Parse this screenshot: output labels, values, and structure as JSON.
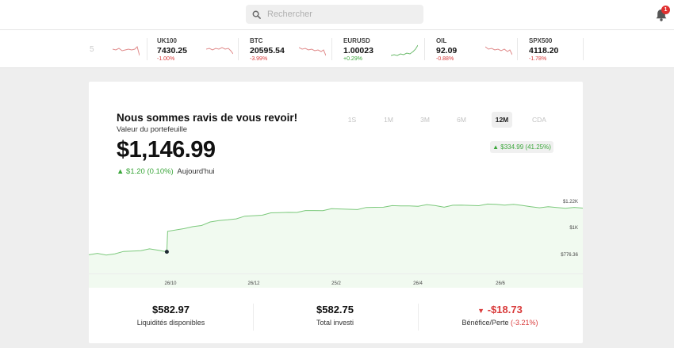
{
  "search": {
    "placeholder": "Rechercher",
    "value": ""
  },
  "notifications": {
    "count": "1"
  },
  "ticker": {
    "partial_text": "5",
    "items": [
      {
        "name": "UK100",
        "price": "7430.25",
        "change": "-1.00%",
        "direction": "down"
      },
      {
        "name": "BTC",
        "price": "20595.54",
        "change": "-3.99%",
        "direction": "down"
      },
      {
        "name": "EURUSD",
        "price": "1.00023",
        "change": "+0.29%",
        "direction": "up"
      },
      {
        "name": "OIL",
        "price": "92.09",
        "change": "-0.88%",
        "direction": "down"
      },
      {
        "name": "SPX500",
        "price": "4118.20",
        "change": "-1.78%",
        "direction": "down"
      }
    ]
  },
  "portfolio": {
    "greeting": "Nous sommes ravis de vous revoir!",
    "subtitle": "Valeur du portefeuille",
    "value": "$1,146.99",
    "day_change_amount": "$1.20 (0.10%)",
    "day_change_label": "Aujourd'hui",
    "period_change": "$334.99 (41.25%)",
    "periods": [
      "1S",
      "1M",
      "3M",
      "6M",
      "12M",
      "CDA"
    ],
    "active_period": "12M"
  },
  "colors": {
    "positive": "#3aa63a",
    "negative": "#d93a3a",
    "chart_line": "#7cc97c",
    "chart_fill": "#f1faf0"
  },
  "chart_data": {
    "type": "area",
    "y_tick_labels": [
      "$1.22K",
      "$1K",
      "$776.36"
    ],
    "x_tick_labels": [
      "26/10",
      "26/12",
      "25/2",
      "26/4",
      "26/6"
    ],
    "ylim": [
      776.36,
      1220
    ],
    "grid": false,
    "legend": "none",
    "series": [
      {
        "values": [
          780,
          795,
          786,
          800,
          808,
          815,
          822,
          826,
          820,
          812,
          975,
          985,
          1005,
          1018,
          1035,
          1050,
          1060,
          1072,
          1082,
          1090,
          1098,
          1106,
          1112,
          1118,
          1122,
          1126,
          1130,
          1134,
          1138,
          1140,
          1142,
          1144,
          1150,
          1155,
          1160,
          1162,
          1164,
          1168,
          1170,
          1172,
          1168,
          1160,
          1165,
          1170,
          1172,
          1174,
          1176,
          1178,
          1176,
          1172,
          1168,
          1162,
          1158,
          1156,
          1154,
          1152,
          1148,
          1147
        ],
        "marker_index": 9
      }
    ]
  },
  "stats": [
    {
      "value": "$582.97",
      "label": "Liquidités disponibles"
    },
    {
      "value": "$582.75",
      "label": "Total investi"
    },
    {
      "value": "-$18.73",
      "label": "Bénéfice/Perte",
      "pct": "(-3.21%)"
    }
  ]
}
